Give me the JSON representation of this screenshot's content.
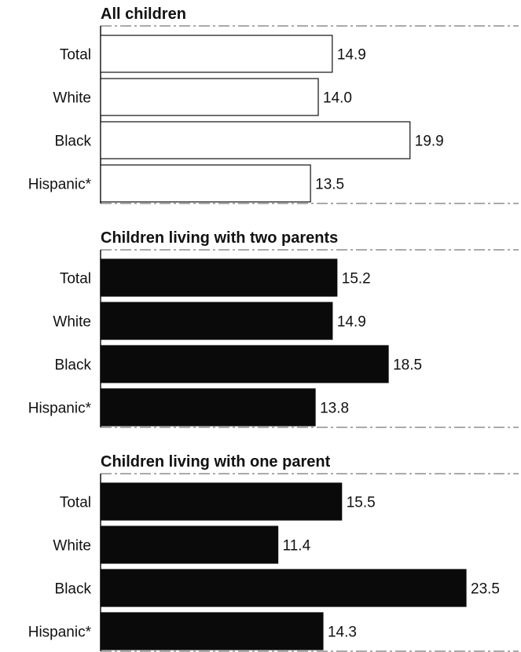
{
  "chart_data": {
    "type": "bar",
    "orientation": "horizontal",
    "categories": [
      "Total",
      "White",
      "Black",
      "Hispanic*"
    ],
    "panels": [
      {
        "title": "All children",
        "values": [
          14.9,
          14.0,
          19.9,
          13.5
        ],
        "fill": "#ffffff",
        "stroke": "#111111"
      },
      {
        "title": "Children living with two parents",
        "values": [
          15.2,
          14.9,
          18.5,
          13.8
        ],
        "fill": "#0a0a0a",
        "stroke": "#0a0a0a"
      },
      {
        "title": "Children living with one parent",
        "values": [
          15.5,
          11.4,
          23.5,
          14.3
        ],
        "fill": "#0a0a0a",
        "stroke": "#0a0a0a"
      }
    ],
    "xlim": [
      0,
      23.5
    ],
    "grid": false,
    "legend": "none"
  }
}
